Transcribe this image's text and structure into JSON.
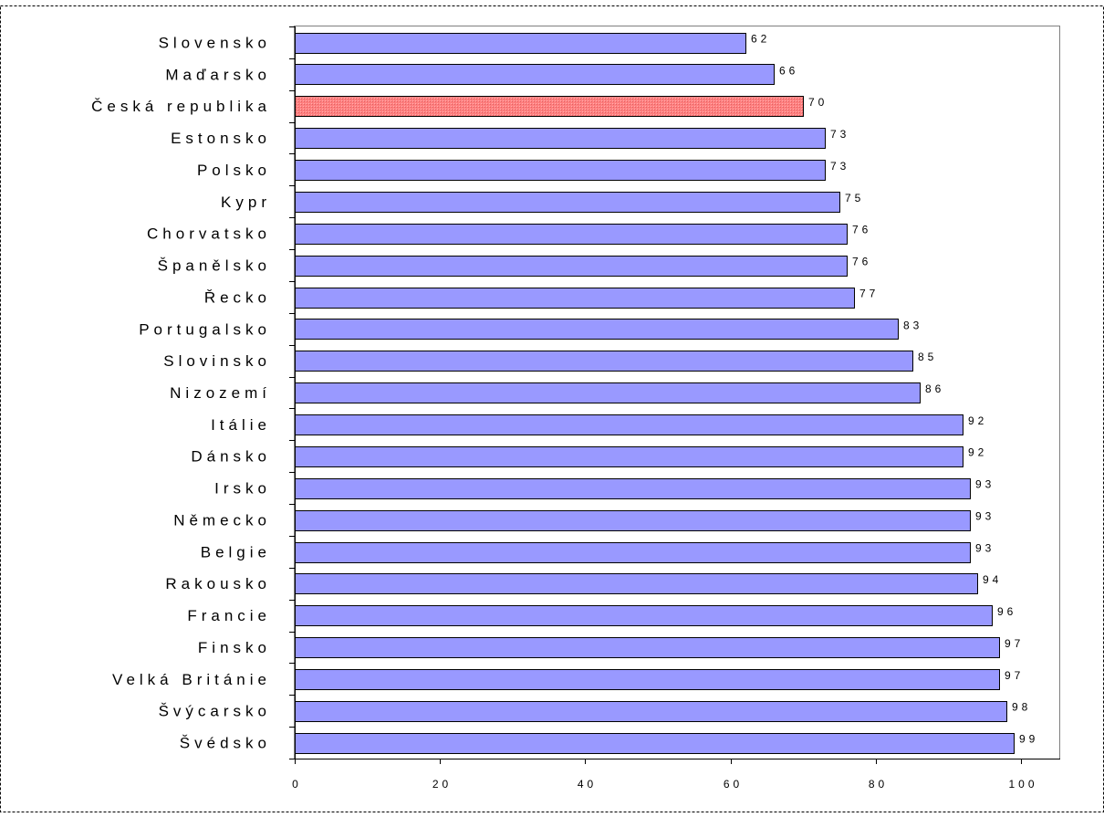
{
  "chart_data": {
    "type": "bar",
    "orientation": "horizontal",
    "categories": [
      "Slovensko",
      "Maďarsko",
      "Česká republika",
      "Estonsko",
      "Polsko",
      "Kypr",
      "Chorvatsko",
      "Španělsko",
      "Řecko",
      "Portugalsko",
      "Slovinsko",
      "Nizozemí",
      "Itálie",
      "Dánsko",
      "Irsko",
      "Německo",
      "Belgie",
      "Rakousko",
      "Francie",
      "Finsko",
      "Velká Británie",
      "Švýcarsko",
      "Švédsko"
    ],
    "values": [
      62,
      66,
      70,
      73,
      73,
      75,
      76,
      76,
      77,
      83,
      85,
      86,
      92,
      92,
      93,
      93,
      93,
      94,
      96,
      97,
      97,
      98,
      99
    ],
    "value_labels": [
      "62",
      "66",
      "70",
      "73",
      "73",
      "75",
      "76",
      "76",
      "77",
      "83",
      "85",
      "86",
      "92",
      "92",
      "93",
      "93",
      "93",
      "94",
      "96",
      "97",
      "97",
      "98",
      "99"
    ],
    "highlight_category": "Česká republika",
    "xlim": [
      0,
      104
    ],
    "xticks": [
      0,
      20,
      40,
      60,
      80,
      100
    ],
    "xtick_labels": [
      "0",
      "20",
      "40",
      "60",
      "80",
      "100"
    ],
    "grid": false,
    "colors": {
      "bar": "#9999ff",
      "highlight": "#ff8080",
      "border": "#000000",
      "frame": "#808080"
    }
  }
}
